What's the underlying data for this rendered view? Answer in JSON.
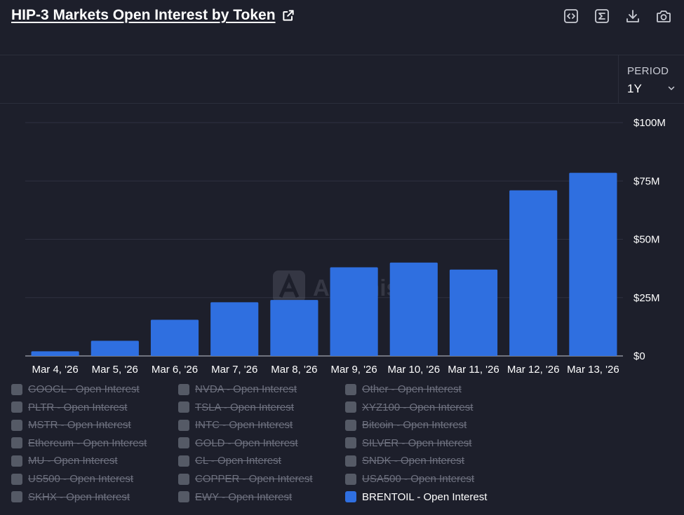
{
  "header": {
    "title": "HIP-3 Markets Open Interest by Token",
    "tools": [
      "code-icon",
      "sigma-icon",
      "download-icon",
      "camera-icon"
    ]
  },
  "period": {
    "label": "PERIOD",
    "value": "1Y"
  },
  "watermark": "Artemis",
  "chart_data": {
    "type": "bar",
    "categories": [
      "Mar 4, '26",
      "Mar 5, '26",
      "Mar 6, '26",
      "Mar 7, '26",
      "Mar 8, '26",
      "Mar 9, '26",
      "Mar 10, '26",
      "Mar 11, '26",
      "Mar 12, '26",
      "Mar 13, '26"
    ],
    "series": [
      {
        "name": "BRENTOIL - Open Interest",
        "color": "#2f6fe0",
        "values": [
          2,
          6.5,
          15.5,
          23,
          24,
          38,
          40,
          37,
          71,
          78.5
        ]
      }
    ],
    "ylim": [
      0,
      100
    ],
    "yticks": [
      0,
      25,
      50,
      75,
      100
    ],
    "ytick_labels": [
      "$0",
      "$25M",
      "$50M",
      "$75M",
      "$100M"
    ],
    "y_axis_position": "right",
    "grid": true
  },
  "legend": {
    "columns": [
      [
        "GOOGL - Open Interest",
        "PLTR - Open Interest",
        "MSTR - Open Interest",
        "Ethereum - Open Interest",
        "MU - Open Interest",
        "US500 - Open Interest",
        "SKHX - Open Interest"
      ],
      [
        "NVDA - Open Interest",
        "TSLA - Open Interest",
        "INTC - Open Interest",
        "GOLD - Open Interest",
        "CL - Open Interest",
        "COPPER - Open Interest",
        "EWY - Open Interest"
      ],
      [
        "Other - Open Interest",
        "XYZ100 - Open Interest",
        "Bitcoin - Open Interest",
        "SILVER - Open Interest",
        "SNDK - Open Interest",
        "USA500 - Open Interest",
        "BRENTOIL - Open Interest"
      ]
    ],
    "active": "BRENTOIL - Open Interest"
  }
}
